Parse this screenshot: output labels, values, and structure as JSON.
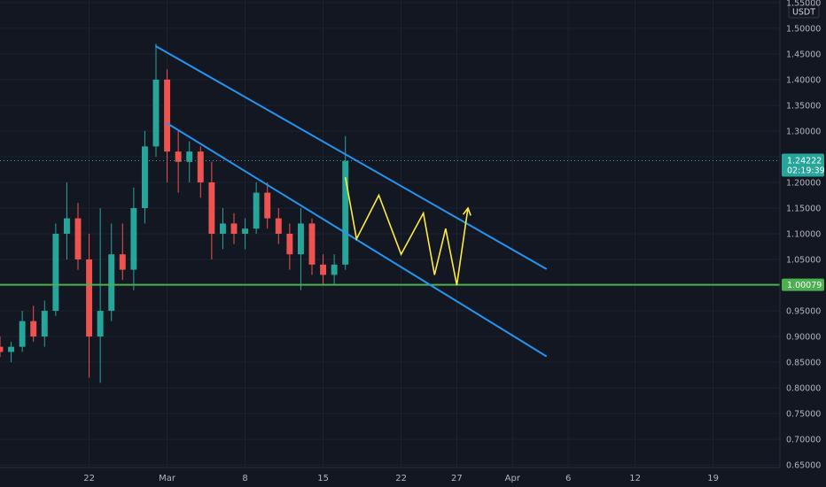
{
  "chart_data": {
    "type": "candlestick",
    "title": "",
    "currency": "USDT",
    "ylim": [
      0.645,
      1.555
    ],
    "yticks": [
      1.55,
      1.5,
      1.45,
      1.4,
      1.35,
      1.3,
      1.25,
      1.2,
      1.15,
      1.1,
      1.05,
      1.0,
      0.95,
      0.9,
      0.85,
      0.8,
      0.75,
      0.7,
      0.65
    ],
    "xticks": [
      "22",
      "Mar",
      "8",
      "15",
      "22",
      "27",
      "Apr",
      "6",
      "12",
      "19"
    ],
    "xlim": [
      "2021-02-14",
      "2021-04-25"
    ],
    "xtick_dates": [
      "2021-02-22",
      "2021-03-01",
      "2021-03-08",
      "2021-03-15",
      "2021-03-22",
      "2021-03-27",
      "2021-04-01",
      "2021-04-06",
      "2021-04-12",
      "2021-04-19"
    ],
    "grid": true,
    "legend": "none",
    "colors": {
      "up": "#26a69a",
      "down": "#ef5350",
      "background": "#131722",
      "grid": "#1e222d",
      "channel": "#2196f3",
      "support": "#4caf50",
      "projection": "#ffeb3b",
      "last_price": "#26a69a"
    },
    "last_price": {
      "value": 1.24222,
      "label": "1.24222",
      "countdown": "02:19:39"
    },
    "support_level": {
      "value": 1.00079,
      "label": "1.00079"
    },
    "trendlines": [
      {
        "name": "",
        "from": [
          "2021-02-28",
          1.465
        ],
        "to": [
          "2021-04-04",
          1.032
        ]
      },
      {
        "name": "",
        "from": [
          "2021-03-01",
          1.315
        ],
        "to": [
          "2021-04-04",
          0.862
        ]
      }
    ],
    "projection_path": [
      [
        "2021-03-17",
        1.21
      ],
      [
        "2021-03-18",
        1.09
      ],
      [
        "2021-03-20",
        1.175
      ],
      [
        "2021-03-22",
        1.06
      ],
      [
        "2021-03-24",
        1.14
      ],
      [
        "2021-03-25",
        1.02
      ],
      [
        "2021-03-26",
        1.11
      ],
      [
        "2021-03-27",
        1.0
      ],
      [
        "2021-03-28",
        1.15
      ]
    ],
    "candles": [
      [
        "2021-02-14",
        0.88,
        0.9,
        0.86,
        0.87
      ],
      [
        "2021-02-15",
        0.87,
        0.89,
        0.85,
        0.88
      ],
      [
        "2021-02-16",
        0.88,
        0.95,
        0.87,
        0.93
      ],
      [
        "2021-02-17",
        0.93,
        0.96,
        0.89,
        0.9
      ],
      [
        "2021-02-18",
        0.9,
        0.97,
        0.88,
        0.95
      ],
      [
        "2021-02-19",
        0.95,
        1.12,
        0.94,
        1.1
      ],
      [
        "2021-02-20",
        1.1,
        1.2,
        1.05,
        1.13
      ],
      [
        "2021-02-21",
        1.13,
        1.16,
        1.03,
        1.05
      ],
      [
        "2021-02-22",
        1.05,
        1.1,
        0.82,
        0.9
      ],
      [
        "2021-02-23",
        0.9,
        1.15,
        0.81,
        0.95
      ],
      [
        "2021-02-24",
        0.95,
        1.12,
        0.93,
        1.06
      ],
      [
        "2021-02-25",
        1.06,
        1.12,
        1.01,
        1.03
      ],
      [
        "2021-02-26",
        1.03,
        1.19,
        0.99,
        1.15
      ],
      [
        "2021-02-27",
        1.15,
        1.3,
        1.12,
        1.27
      ],
      [
        "2021-02-28",
        1.27,
        1.47,
        1.25,
        1.4
      ],
      [
        "2021-03-01",
        1.4,
        1.42,
        1.2,
        1.26
      ],
      [
        "2021-03-02",
        1.26,
        1.3,
        1.18,
        1.24
      ],
      [
        "2021-03-03",
        1.24,
        1.28,
        1.2,
        1.26
      ],
      [
        "2021-03-04",
        1.26,
        1.27,
        1.17,
        1.2
      ],
      [
        "2021-03-05",
        1.2,
        1.24,
        1.05,
        1.1
      ],
      [
        "2021-03-06",
        1.1,
        1.15,
        1.07,
        1.12
      ],
      [
        "2021-03-07",
        1.12,
        1.14,
        1.08,
        1.1
      ],
      [
        "2021-03-08",
        1.1,
        1.13,
        1.07,
        1.11
      ],
      [
        "2021-03-09",
        1.11,
        1.2,
        1.1,
        1.18
      ],
      [
        "2021-03-10",
        1.18,
        1.2,
        1.11,
        1.13
      ],
      [
        "2021-03-11",
        1.13,
        1.15,
        1.08,
        1.1
      ],
      [
        "2021-03-12",
        1.1,
        1.12,
        1.03,
        1.06
      ],
      [
        "2021-03-13",
        1.06,
        1.15,
        0.99,
        1.12
      ],
      [
        "2021-03-14",
        1.12,
        1.13,
        1.02,
        1.04
      ],
      [
        "2021-03-15",
        1.04,
        1.06,
        1.0,
        1.02
      ],
      [
        "2021-03-16",
        1.02,
        1.06,
        1.0,
        1.04
      ],
      [
        "2021-03-17",
        1.04,
        1.29,
        1.03,
        1.242
      ]
    ]
  }
}
